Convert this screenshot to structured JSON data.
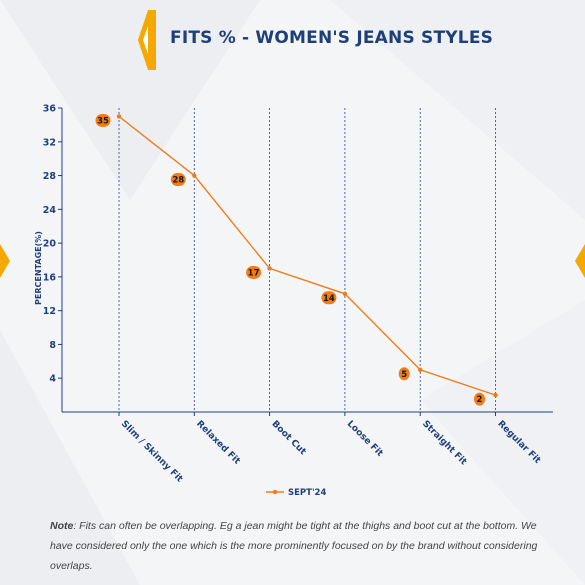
{
  "header": {
    "title": "FITS % - WOMEN'S JEANS STYLES"
  },
  "colors": {
    "accent": "#f5a800",
    "line": "#f07d1a",
    "navy": "#1f3f7a",
    "label_bubble": "#f07d1a"
  },
  "note": {
    "label": "Note",
    "text": ": Fits can often be overlapping. Eg a jean might be tight at the thighs and boot cut at the bottom. We have considered only the one which is the more prominently focused on by the brand without considering overlaps."
  },
  "chart_data": {
    "type": "line",
    "title": "FITS % - WOMEN'S JEANS STYLES",
    "xlabel": "",
    "ylabel": "PERCENTAGE(%)",
    "ylim": [
      0,
      36
    ],
    "yticks": [
      4,
      8,
      12,
      16,
      20,
      24,
      28,
      32,
      36
    ],
    "categories": [
      "Slim / Skinny Fit",
      "Relaxed Fit",
      "Boot Cut",
      "Loose Fit",
      "Straight Fit",
      "Regular Fit"
    ],
    "series": [
      {
        "name": "SEPT'24",
        "values": [
          35,
          28,
          17,
          14,
          5,
          2
        ]
      }
    ],
    "grid": "vertical dotted lines at categories",
    "legend": "bottom-center"
  }
}
